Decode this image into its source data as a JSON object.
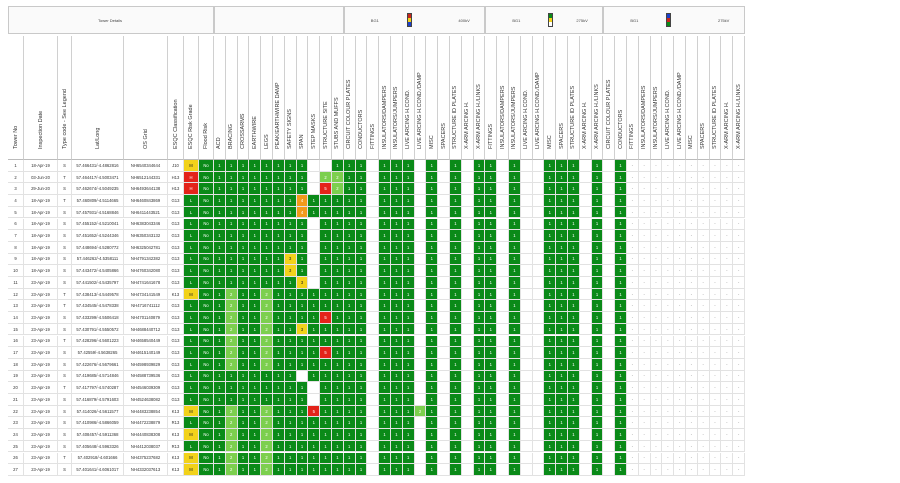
{
  "groups": [
    {
      "label": "Tower Details"
    },
    {
      "label": ""
    },
    {
      "label": "BG1",
      "right": "400kV",
      "swatch": [
        "#c9261c",
        "#f2d21a",
        "#1c3fc9"
      ]
    },
    {
      "label": "BG1",
      "right": "275kV",
      "swatch": [
        "#0a8a18",
        "#f2d21a",
        "#ffffff"
      ]
    },
    {
      "label": "BG1",
      "right": "275kV",
      "swatch": [
        "#1c3fc9",
        "#c9261c",
        "#0a8a18"
      ]
    }
  ],
  "columns": [
    "Tower No",
    "Inspection Date",
    "Type code - See Legend",
    "Lat/Long",
    "OS Grid",
    "ESQC Classification",
    "ESQC Risk Grade",
    "Flood Risk",
    "ACD",
    "BRACING",
    "CROSSARMS",
    "EARTHWIRE",
    "LEGS",
    "PEAK/EARTHWIRE DAMP",
    "SAFETY SIGNS",
    "SPAN",
    "STEP MASKS",
    "STRUCTURE SITE",
    "STUBS AND MUFFS",
    "CIRCUIT COLOUR PLATES",
    "CONDUCTORS",
    "FITTINGS",
    "INSULATORS/DAMPERS",
    "INSULATORS/JUMPERS",
    "LIVE ARCING H.COND.",
    "LIVE ARCING H.COND./DAMP",
    "MISC",
    "SPACERS",
    "STRUCTURE ID PLATES",
    "X-ARM ARCING H.",
    "X-ARM ARCING H./LINKS",
    "FITTINGS",
    "INSULATORS/DAMPERS",
    "INSULATORS/JUMPERS",
    "LIVE ARCING H.COND.",
    "LIVE ARCING H.COND./DAMP",
    "MISC",
    "SPACERS",
    "STRUCTURE ID PLATES",
    "X-ARM ARCING H.",
    "X-ARM ARCING H./LINKS",
    "CIRCUIT COLOUR PLATES",
    "CONDUCTORS",
    "FITTINGS",
    "INSULATORS/DAMPERS",
    "INSULATORS/JUMPERS",
    "LIVE ARCING H.COND.",
    "LIVE ARCING H.COND./DAMP",
    "MISC",
    "SPACERS",
    "STRUCTURE ID PLATES",
    "X-ARM ARCING H.",
    "X-ARM ARCING H./LINKS"
  ],
  "colors": {
    "good": "#0a8a18",
    "fair": "#7ccf4e",
    "warn": "#f2d21a",
    "amber": "#f29a1a",
    "bad": "#e3231a"
  },
  "rows": [
    {
      "no": "1",
      "date": "18-Apr-19",
      "type": "S",
      "latlong": "57.466431/-4.4862816",
      "osgrid": "NH6540344644",
      "cls": "J10",
      "grade": "M",
      "gradeColor": "y",
      "flood": "No",
      "a": "g g g g g g g g wt wt g g",
      "s1": "g wt g g g wt g wt g wt g g",
      "s2": "wt g wt wt g g g wt g wt",
      "s3": "g d d d d d d d d d d d"
    },
    {
      "no": "2",
      "date": "03-Jun-20",
      "type": "T",
      "latlong": "57.464417/-4.5003471",
      "osgrid": "NH6512144331",
      "cls": "H13",
      "grade": "H",
      "gradeColor": "r",
      "flood": "No",
      "a": "g g g g g g g g wt lg lg g",
      "s1": "g wt g g g wt g wt g wt g g",
      "s2": "wt g wt wt g g g wt g wt",
      "s3": "g d d d d d d d d d d d"
    },
    {
      "no": "3",
      "date": "29-Jun-20",
      "type": "S",
      "latlong": "57.462674/-4.5049235",
      "osgrid": "NH6493644138",
      "cls": "H13",
      "grade": "H",
      "gradeColor": "r",
      "flood": "No",
      "a": "g g g g g g g g wt r lg g",
      "s1": "g wt g g g wt g wt g wt g g",
      "s2": "wt g wt wt g g g wt g wt",
      "s3": "g d d d d d d d d d d d"
    },
    {
      "no": "4",
      "date": "18-Apr-19",
      "type": "T",
      "latlong": "57.460809/-4.5114665",
      "osgrid": "NH6460843869",
      "cls": "G13",
      "grade": "L",
      "gradeColor": "g",
      "flood": "No",
      "a": "g g g g g g g o g g g g",
      "s1": "g wt g g g wt g wt g wt g g",
      "s2": "wt g wt wt g g g wt g wt",
      "s3": "g d d d d d d d d d d d"
    },
    {
      "no": "5",
      "date": "18-Apr-19",
      "type": "S",
      "latlong": "57.457931/-4.5168846",
      "osgrid": "NH6411443521",
      "cls": "G13",
      "grade": "L",
      "gradeColor": "g",
      "flood": "No",
      "a": "g g g g g g g o g g g g",
      "s1": "g wt g g g wt g wt g wt g g",
      "s2": "wt g wt wt g g g wt g wt",
      "s3": "g d d d d d d d d d d d"
    },
    {
      "no": "6",
      "date": "18-Apr-19",
      "type": "S",
      "latlong": "57.455152/-4.5210041",
      "osgrid": "NH6383043346",
      "cls": "G13",
      "grade": "L",
      "gradeColor": "g",
      "flood": "No",
      "a": "g g g g g g g g wt g g g",
      "s1": "g wt g g g wt g wt g wt g g",
      "s2": "wt g wt wt g g g wt g wt",
      "s3": "g d d d d d d d d d d d"
    },
    {
      "no": "7",
      "date": "18-Apr-19",
      "type": "S",
      "latlong": "57.451652/-4.5244346",
      "osgrid": "NH6350343132",
      "cls": "G13",
      "grade": "L",
      "gradeColor": "g",
      "flood": "No",
      "a": "g g g g g g g g wt g g g",
      "s1": "g wt g g g wt g wt g wt g g",
      "s2": "wt g wt wt g g g wt g wt",
      "s3": "g d d d d d d d d d d d"
    },
    {
      "no": "8",
      "date": "18-Apr-19",
      "type": "S",
      "latlong": "57.448694/-4.5280772",
      "osgrid": "NH6325042781",
      "cls": "G13",
      "grade": "L",
      "gradeColor": "g",
      "flood": "No",
      "a": "g g g g g g g g wt g g g",
      "s1": "g wt g g g wt g wt g wt g g",
      "s2": "wt g wt wt g g g wt g wt",
      "s3": "g d d d d d d d d d d d"
    },
    {
      "no": "9",
      "date": "18-Apr-19",
      "type": "S",
      "latlong": "57.446262/-4.5358111",
      "osgrid": "NH4791342382",
      "cls": "G13",
      "grade": "L",
      "gradeColor": "g",
      "flood": "No",
      "a": "g g g g g g y g wt g g g",
      "s1": "g wt g g g wt g wt g wt g g",
      "s2": "wt g wt wt g g g wt g wt",
      "s3": "g d d d d d d d d d d d"
    },
    {
      "no": "10",
      "date": "18-Apr-19",
      "type": "S",
      "latlong": "57.443472/-4.5405866",
      "osgrid": "NH4760342080",
      "cls": "G13",
      "grade": "L",
      "gradeColor": "g",
      "flood": "No",
      "a": "g g g g g g y g wt g g g",
      "s1": "g wt g g g wt g wt g wt g g",
      "s2": "wt g wt wt g g g wt g wt",
      "s3": "g d d d d d d d d d d d"
    },
    {
      "no": "11",
      "date": "23-Apr-19",
      "type": "S",
      "latlong": "57.441502/-4.5435797",
      "osgrid": "NH4741641678",
      "cls": "G13",
      "grade": "L",
      "gradeColor": "g",
      "flood": "No",
      "a": "g g g g g g g y wt g g g",
      "s1": "g wt g g g wt g wt g wt g g",
      "s2": "wt g wt wt g g g wt g wt",
      "s3": "g d d d d d d d d d d d"
    },
    {
      "no": "12",
      "date": "23-Apr-19",
      "type": "T",
      "latlong": "57.438413/-4.5449578",
      "osgrid": "NH4734141549",
      "cls": "K13",
      "grade": "M",
      "gradeColor": "y",
      "flood": "No",
      "a": "g lg g g lg g g g g g g g",
      "s1": "g wt g g g wt g wt g wt g g",
      "s2": "wt g wt wt g g g wt g wt",
      "s3": "g d d d d d d d d d d d"
    },
    {
      "no": "13",
      "date": "23-Apr-19",
      "type": "T",
      "latlong": "57.434545/-4.5478338",
      "osgrid": "NH4716741112",
      "cls": "G13",
      "grade": "L",
      "gradeColor": "g",
      "flood": "No",
      "a": "g lg g g lg g g g g g g g",
      "s1": "g wt g g g wt g wt g wt g g",
      "s2": "wt g wt wt g g g wt g wt",
      "s3": "g d d d d d d d d d d d"
    },
    {
      "no": "14",
      "date": "23-Apr-19",
      "type": "S",
      "latlong": "57.433299/-4.5506418",
      "osgrid": "NH4701140879",
      "cls": "G13",
      "grade": "L",
      "gradeColor": "g",
      "flood": "No",
      "a": "g lg g g lg g g g g r g g",
      "s1": "g wt g g g wt g wt g wt g g",
      "s2": "wt g wt wt g g g wt g wt",
      "s3": "g d d d d d d d d d d d"
    },
    {
      "no": "15",
      "date": "23-Apr-19",
      "type": "S",
      "latlong": "57.430791/-4.5550572",
      "osgrid": "NH4688440712",
      "cls": "G13",
      "grade": "L",
      "gradeColor": "g",
      "flood": "No",
      "a": "g lg g g lg g g y g g g g",
      "s1": "g wt g g g wt g wt g wt g g",
      "s2": "wt g wt wt g g g wt g wt",
      "s3": "g d d d d d d d d d d d"
    },
    {
      "no": "16",
      "date": "23-Apr-19",
      "type": "T",
      "latlong": "57.428296/-4.5601223",
      "osgrid": "NH4658540449",
      "cls": "G13",
      "grade": "L",
      "gradeColor": "g",
      "flood": "No",
      "a": "g lg g g lg g g g g g g g",
      "s1": "g wt g g g wt g wt g wt g g",
      "s2": "wt g wt wt g g g wt g wt",
      "s3": "g d d d d d d d d d d d"
    },
    {
      "no": "17",
      "date": "23-Apr-19",
      "type": "S",
      "latlong": "57.42559/-4.5638265",
      "osgrid": "NH4615140149",
      "cls": "G13",
      "grade": "L",
      "gradeColor": "g",
      "flood": "No",
      "a": "g lg g g lg g g g g r g g",
      "s1": "g wt g g g wt g wt g wt g g",
      "s2": "wt g wt wt g g g wt g wt",
      "s3": "g d d d d d d d d d d d"
    },
    {
      "no": "18",
      "date": "23-Apr-19",
      "type": "S",
      "latlong": "57.422676/-4.5679661",
      "osgrid": "NH4598939829",
      "cls": "G13",
      "grade": "L",
      "gradeColor": "g",
      "flood": "No",
      "a": "g lg g g lg g g g g g g g",
      "s1": "g wt g g g wt g wt g wt g g",
      "s2": "wt g wt wt g g g wt g wt",
      "s3": "g d d d d d d d d d d d"
    },
    {
      "no": "19",
      "date": "23-Apr-19",
      "type": "S",
      "latlong": "57.419685/-4.5714846",
      "osgrid": "NH4588739536",
      "cls": "G13",
      "grade": "L",
      "gradeColor": "g",
      "flood": "No",
      "a": "g g g g g g g wt g g g g",
      "s1": "g wt g g g wt g wt g wt g g",
      "s2": "wt g wt wt g g g wt g wt",
      "s3": "g d d d d d d d d d d d"
    },
    {
      "no": "20",
      "date": "23-Apr-19",
      "type": "T",
      "latlong": "57.417797/-4.5740287",
      "osgrid": "NH4546039309",
      "cls": "G13",
      "grade": "L",
      "gradeColor": "g",
      "flood": "No",
      "a": "g g g g g g g g wt g g g",
      "s1": "g wt g g g wt g wt g wt g g",
      "s2": "wt g wt wt g g g wt g wt",
      "s3": "g d d d d d d d d d d d"
    },
    {
      "no": "21",
      "date": "23-Apr-19",
      "type": "S",
      "latlong": "57.416879/-4.5791603",
      "osgrid": "NH4524638082",
      "cls": "G13",
      "grade": "L",
      "gradeColor": "g",
      "flood": "No",
      "a": "g g g g g g g g wt g g g",
      "s1": "g wt g g g wt g wt g wt g g",
      "s2": "wt g wt wt g g g wt g wt",
      "s3": "g d d d d d d d d d d d"
    },
    {
      "no": "22",
      "date": "23-Apr-19",
      "type": "S",
      "latlong": "57.414026/-4.5611577",
      "osgrid": "NH4483238854",
      "cls": "K13",
      "grade": "M",
      "gradeColor": "y",
      "flood": "No",
      "a": "g lg g g lg g g g r g g g",
      "s1": "g wt g g g lg g wt g wt g g",
      "s2": "wt g wt wt g g g wt g wt",
      "s3": "g d d d d d d d d d d d"
    },
    {
      "no": "23",
      "date": "23-Apr-19",
      "type": "S",
      "latlong": "57.410986/-4.5866059",
      "osgrid": "NH4472238879",
      "cls": "R13",
      "grade": "L",
      "gradeColor": "g",
      "flood": "No",
      "a": "g lg g g lg g g g g g g g",
      "s1": "g wt g g g wt g wt g wt g g",
      "s2": "wt g wt wt g g g wt g wt",
      "s3": "g d d d d d d d d d d d"
    },
    {
      "no": "24",
      "date": "23-Apr-19",
      "type": "S",
      "latlong": "57.408457/-4.5911368",
      "osgrid": "NH4440838308",
      "cls": "K13",
      "grade": "M",
      "gradeColor": "y",
      "flood": "No",
      "a": "g lg g g lg g g g g g g g",
      "s1": "g wt g g g wt g wt g wt g g",
      "s2": "wt g wt wt g g g wt g wt",
      "s3": "g d d d d d d d d d d d"
    },
    {
      "no": "25",
      "date": "23-Apr-19",
      "type": "S",
      "latlong": "57.405648/-4.5963326",
      "osgrid": "NH4412038037",
      "cls": "R13",
      "grade": "L",
      "gradeColor": "g",
      "flood": "No",
      "a": "g lg g g lg g g g g g g g",
      "s1": "g wt g g g wt g wt g wt g g",
      "s2": "wt g wt wt g g g wt g wt",
      "s3": "g d d d d d d d d d d d"
    },
    {
      "no": "26",
      "date": "23-Apr-19",
      "type": "T",
      "latlong": "57.402918/-4.601666",
      "osgrid": "NH4375237682",
      "cls": "K13",
      "grade": "M",
      "gradeColor": "y",
      "flood": "No",
      "a": "g lg g g lg g g g g g g g",
      "s1": "g wt g g g wt g wt g wt g g",
      "s2": "wt g wt wt g g g wt g wt",
      "s3": "g d d d d d d d d d d d"
    },
    {
      "no": "27",
      "date": "23-Apr-19",
      "type": "S",
      "latlong": "57.401641/-4.6061017",
      "osgrid": "NH4332037613",
      "cls": "K13",
      "grade": "M",
      "gradeColor": "y",
      "flood": "No",
      "a": "g lg g g lg g g g g g g g",
      "s1": "g wt g g g wt g wt g wt g g",
      "s2": "wt g wt wt g g g wt g wt",
      "s3": "g d d d d d d d d d d d"
    }
  ]
}
